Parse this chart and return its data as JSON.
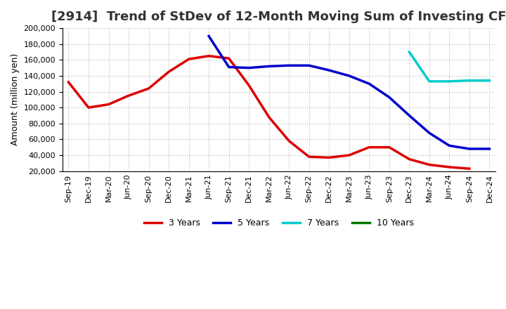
{
  "title": "[2914]  Trend of StDev of 12-Month Moving Sum of Investing CF",
  "ylabel": "Amount (million yen)",
  "background_color": "#ffffff",
  "grid_color": "#b0b0b0",
  "x_labels": [
    "Sep-19",
    "Dec-19",
    "Mar-20",
    "Jun-20",
    "Sep-20",
    "Dec-20",
    "Mar-21",
    "Jun-21",
    "Sep-21",
    "Dec-21",
    "Mar-22",
    "Jun-22",
    "Sep-22",
    "Dec-22",
    "Mar-23",
    "Jun-23",
    "Sep-23",
    "Dec-23",
    "Mar-24",
    "Jun-24",
    "Sep-24",
    "Dec-24"
  ],
  "series": [
    {
      "label": "3 Years",
      "color": "#dd0000",
      "linewidth": 2.5,
      "data_x": [
        0,
        1,
        2,
        3,
        4,
        5,
        6,
        7,
        8,
        9,
        10,
        11,
        12,
        13,
        14,
        15,
        16,
        17,
        18,
        19,
        20
      ],
      "data_y": [
        132000,
        100000,
        104000,
        115000,
        124000,
        145000,
        161000,
        165000,
        162000,
        128000,
        88000,
        58000,
        38000,
        37000,
        40000,
        50000,
        50000,
        35000,
        28000,
        25000,
        23000
      ]
    },
    {
      "label": "5 Years",
      "color": "#0000cc",
      "linewidth": 2.5,
      "data_x": [
        7,
        8,
        9,
        10,
        11,
        12,
        13,
        14,
        15,
        16,
        17,
        18,
        19,
        20,
        21
      ],
      "data_y": [
        190000,
        151000,
        150000,
        152000,
        153000,
        153000,
        147000,
        140000,
        130000,
        113000,
        90000,
        68000,
        52000,
        48000,
        48000
      ]
    },
    {
      "label": "7 Years",
      "color": "#00cccc",
      "linewidth": 2.5,
      "data_x": [
        17,
        18,
        19,
        20,
        21
      ],
      "data_y": [
        170000,
        133000,
        133000,
        134000,
        134000
      ]
    },
    {
      "label": "10 Years",
      "color": "#007700",
      "linewidth": 2.5,
      "data_x": [],
      "data_y": []
    }
  ],
  "ylim_min": 20000,
  "ylim_max": 200000,
  "yticks": [
    20000,
    40000,
    60000,
    80000,
    100000,
    120000,
    140000,
    160000,
    180000,
    200000
  ],
  "title_fontsize": 13,
  "tick_fontsize": 8,
  "label_fontsize": 9
}
